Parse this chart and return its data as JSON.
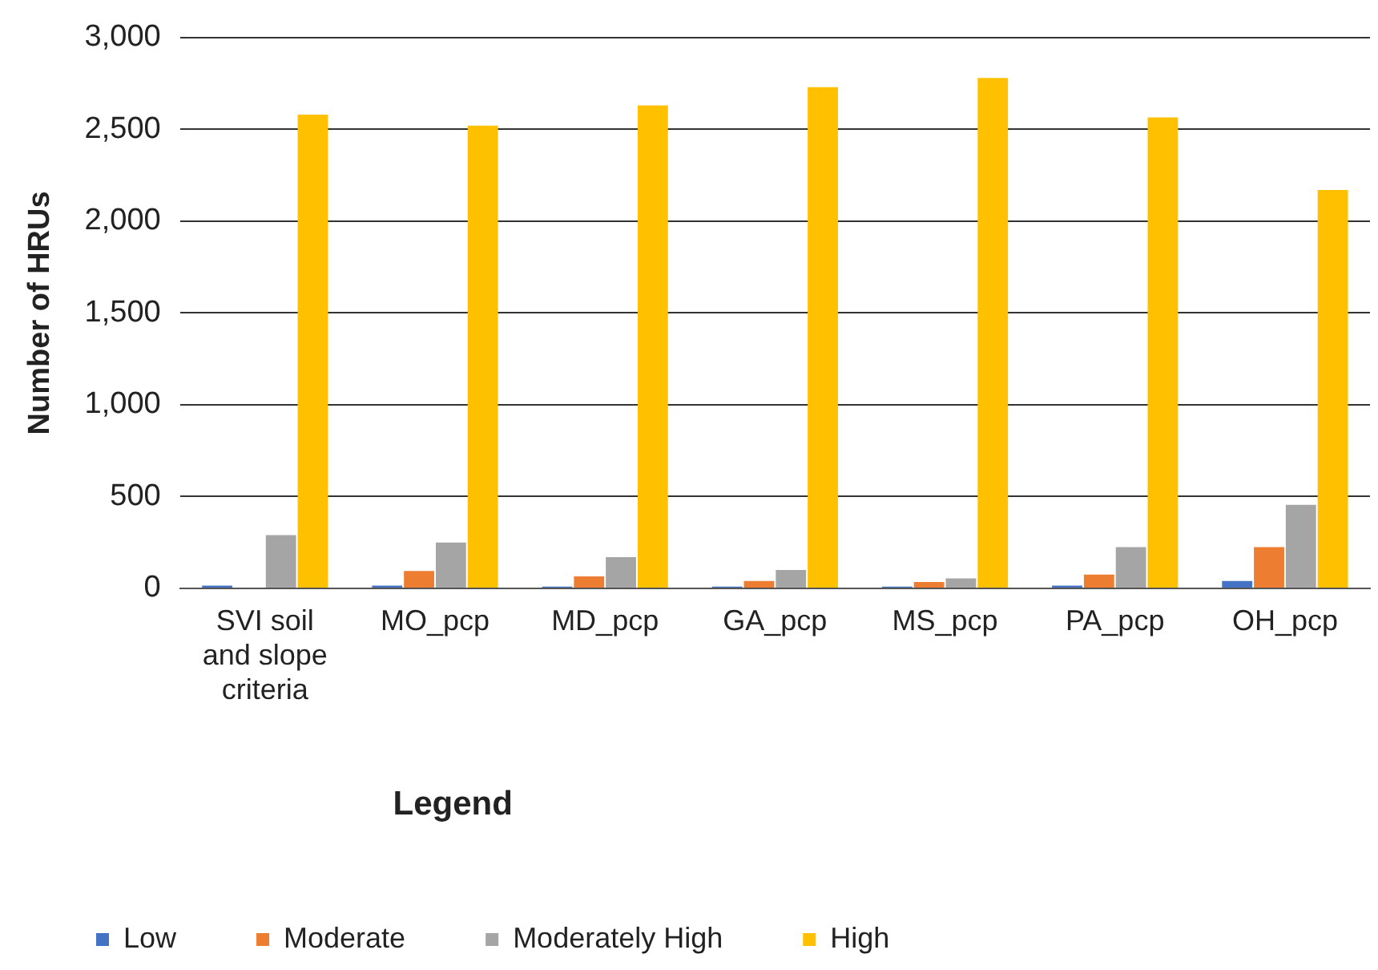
{
  "chart_data": {
    "type": "bar",
    "ylabel": "Number of HRUs",
    "legend_title": "Legend",
    "categories": [
      "SVI soil and slope criteria",
      "MO_pcp",
      "MD_pcp",
      "GA_pcp",
      "MS_pcp",
      "PA_pcp",
      "OH_pcp"
    ],
    "series": [
      {
        "name": "Low",
        "color": "#4472c4",
        "values": [
          15,
          15,
          10,
          10,
          10,
          15,
          40
        ]
      },
      {
        "name": "Moderate",
        "color": "#ed7d31",
        "values": [
          0,
          95,
          65,
          40,
          35,
          75,
          225
        ]
      },
      {
        "name": "Moderately High",
        "color": "#a5a5a5",
        "values": [
          290,
          250,
          170,
          100,
          55,
          225,
          455
        ]
      },
      {
        "name": "High",
        "color": "#ffc000",
        "values": [
          2580,
          2520,
          2630,
          2730,
          2780,
          2565,
          2170
        ]
      }
    ],
    "ylim": [
      0,
      3000
    ],
    "yticks": [
      {
        "value": 0,
        "label": "0"
      },
      {
        "value": 500,
        "label": "500"
      },
      {
        "value": 1000,
        "label": "1,000"
      },
      {
        "value": 1500,
        "label": "1,500"
      },
      {
        "value": 2000,
        "label": "2,000"
      },
      {
        "value": 2500,
        "label": "2,500"
      },
      {
        "value": 3000,
        "label": "3,000"
      }
    ],
    "grid": "y",
    "legend": "bottom"
  }
}
